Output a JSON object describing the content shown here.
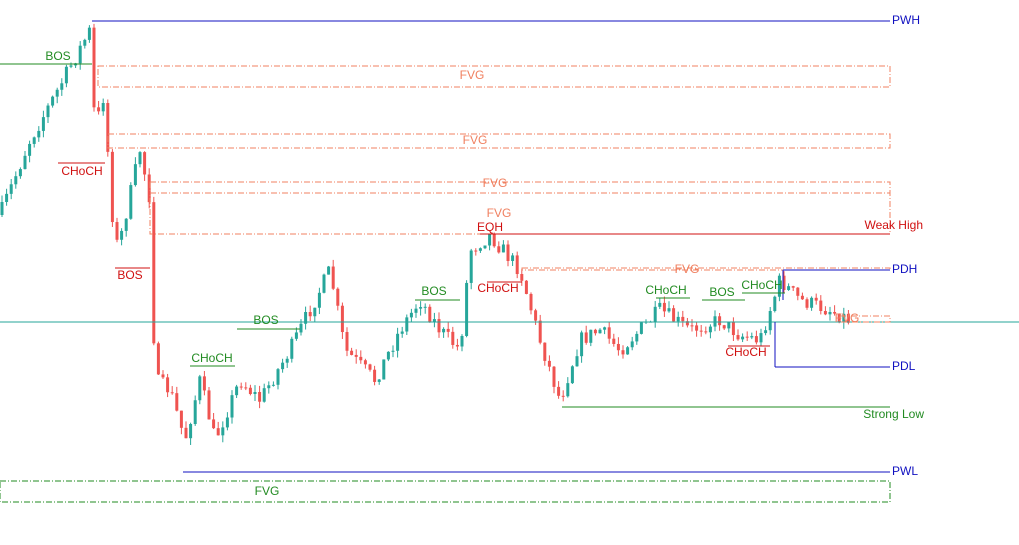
{
  "levels": [
    {
      "label": "PWH"
    },
    {
      "label": "Weak High"
    },
    {
      "label": "PDH"
    },
    {
      "label": "PDL"
    },
    {
      "label": "Strong Low"
    },
    {
      "label": "PWL"
    }
  ],
  "zones": [
    {
      "label": "FVG"
    },
    {
      "label": "FVG"
    },
    {
      "label": "FVG"
    },
    {
      "label": "FVG"
    },
    {
      "label": "FVG"
    },
    {
      "label": "FVG"
    },
    {
      "label": "FVG"
    }
  ],
  "structure_labels": [
    {
      "label": "BOS"
    },
    {
      "label": "CHoCH"
    },
    {
      "label": "BOS"
    },
    {
      "label": "CHoCH"
    },
    {
      "label": "BOS"
    },
    {
      "label": "BOS"
    },
    {
      "label": "EQH"
    },
    {
      "label": "CHoCH"
    },
    {
      "label": "CHoCH"
    },
    {
      "label": "BOS"
    },
    {
      "label": "CHoCH"
    },
    {
      "label": "CHoCH"
    }
  ]
}
